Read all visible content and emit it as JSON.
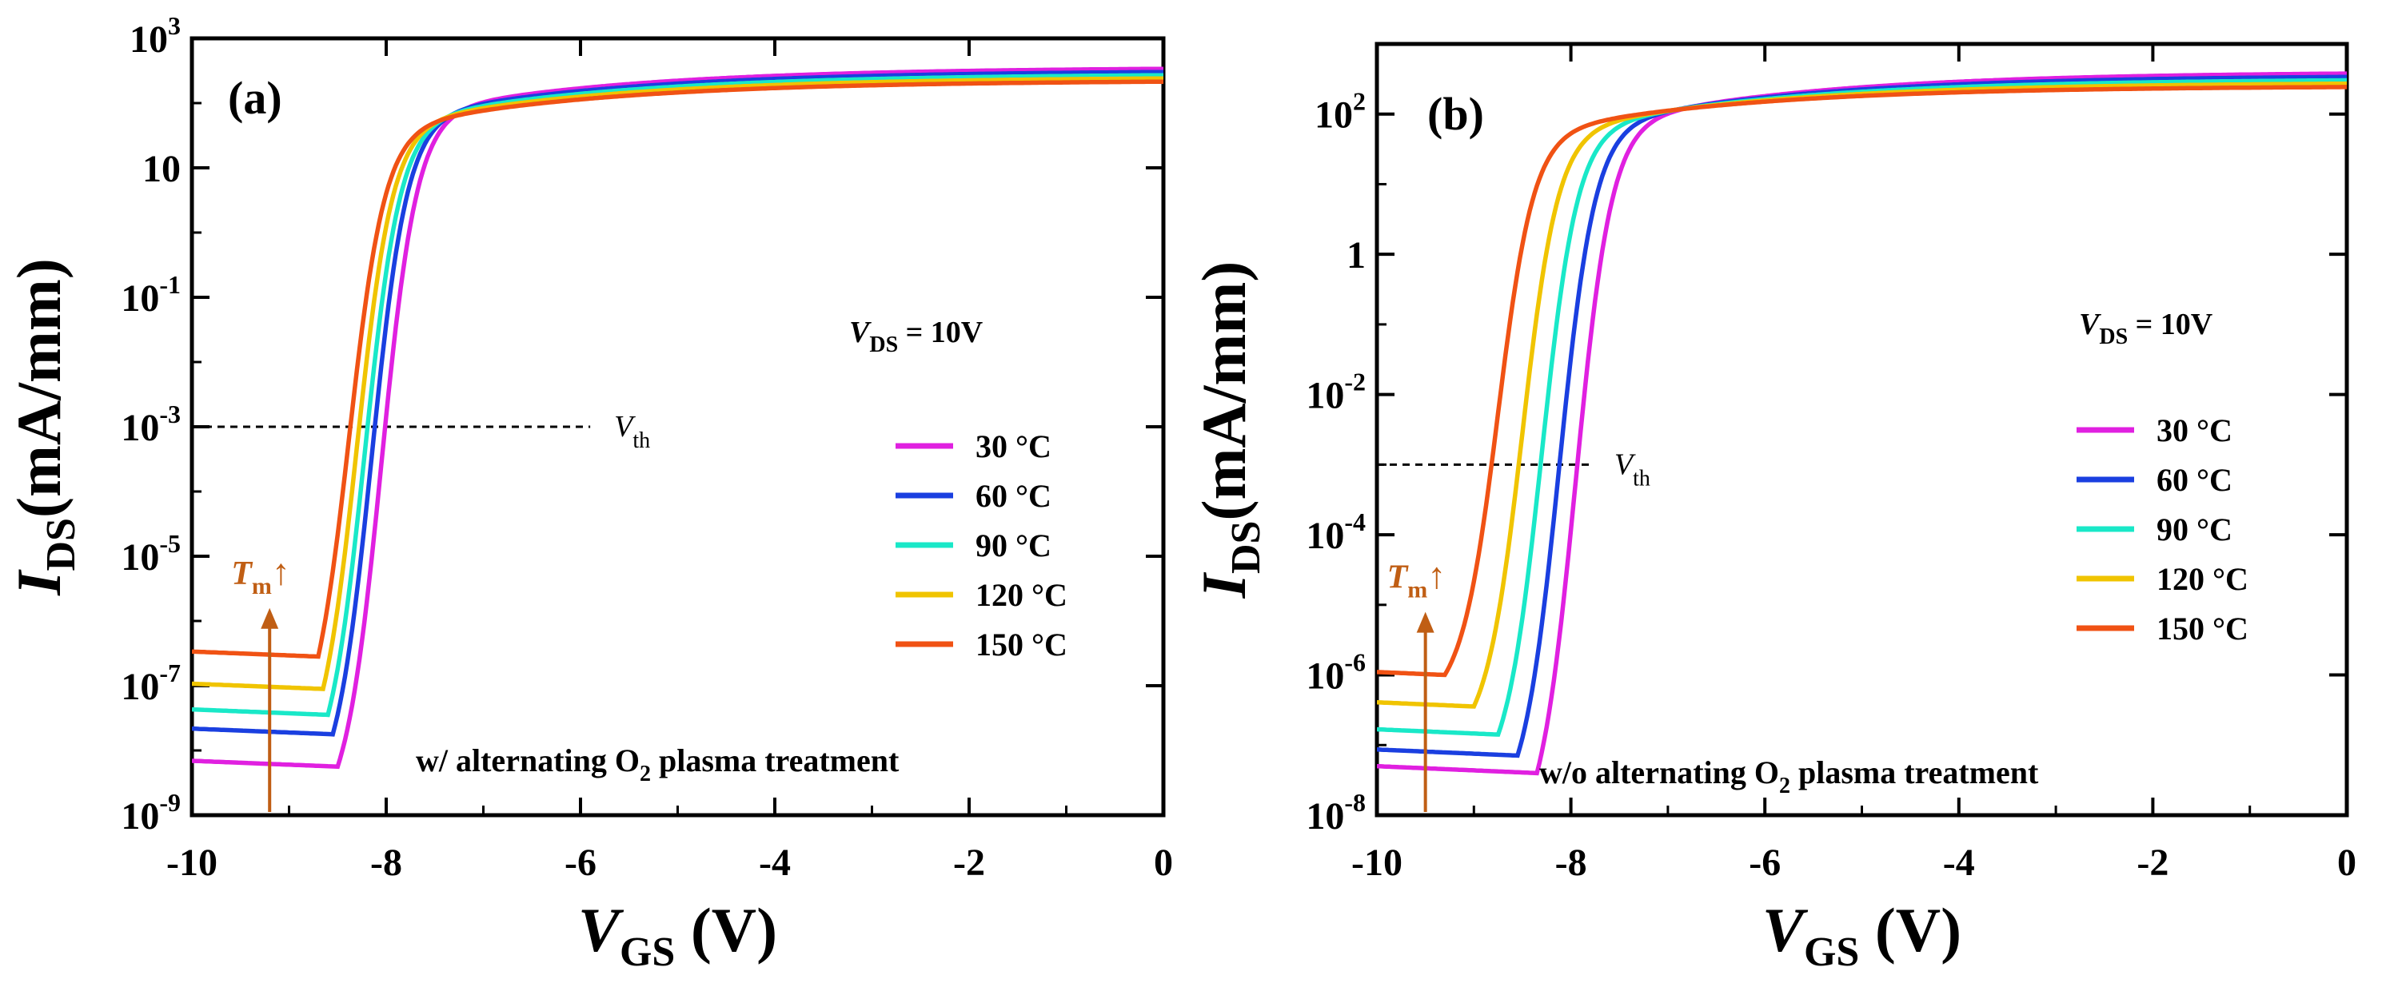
{
  "chart_data": [
    {
      "type": "line",
      "panel_label": "(a)",
      "xlabel": "V",
      "xlabel_sub": "GS",
      "xlabel_unit": " (V)",
      "ylabel": "I",
      "ylabel_sub": "DS",
      "ylabel_unit": "(mA/mm)",
      "xlim": [
        -10,
        0
      ],
      "ylim_log10": [
        -9,
        3
      ],
      "x_ticks": [
        {
          "value": -10,
          "label": "-10"
        },
        {
          "value": -8,
          "label": "-8"
        },
        {
          "value": -6,
          "label": "-6"
        },
        {
          "value": -4,
          "label": "-4"
        },
        {
          "value": -2,
          "label": "-2"
        },
        {
          "value": 0,
          "label": "0"
        }
      ],
      "y_ticks": [
        {
          "log": 3,
          "base": "10",
          "exp": "3"
        },
        {
          "log": 1,
          "base": "10",
          "exp": ""
        },
        {
          "log": -1,
          "base": "10",
          "exp": "-1"
        },
        {
          "log": -3,
          "base": "10",
          "exp": "-3"
        },
        {
          "log": -5,
          "base": "10",
          "exp": "-5"
        },
        {
          "log": -7,
          "base": "10",
          "exp": "-7"
        },
        {
          "log": -9,
          "base": "10",
          "exp": "-9"
        }
      ],
      "annotation": {
        "prefix": "w/  alternating O",
        "sub": "2",
        "suffix": " plasma treatment"
      },
      "vds_text": {
        "main": "V",
        "sub": "DS",
        "rest": " = 10V"
      },
      "vth_text": {
        "main": "V",
        "sub": "th"
      },
      "vth_line": {
        "log": -3,
        "x_from": -10,
        "x_to": -5.9
      },
      "tm_text": {
        "main": "T",
        "sub": "m",
        "arrow": "↑"
      },
      "tm_arrow": {
        "x": -9.2,
        "log_from": -9,
        "log_to": -5.8
      },
      "series": [
        {
          "name": "30 °C",
          "color": "#e020e0",
          "floor_log": -8.25,
          "x_knee": -8.5,
          "x_mid": -8.05,
          "sat_log": 2.55
        },
        {
          "name": "60 °C",
          "color": "#1a3fe0",
          "floor_log": -7.75,
          "x_knee": -8.55,
          "x_mid": -8.15,
          "sat_log": 2.5
        },
        {
          "name": "90 °C",
          "color": "#19e8c8",
          "floor_log": -7.45,
          "x_knee": -8.6,
          "x_mid": -8.22,
          "sat_log": 2.45
        },
        {
          "name": "120 °C",
          "color": "#f0c400",
          "floor_log": -7.05,
          "x_knee": -8.65,
          "x_mid": -8.3,
          "sat_log": 2.4
        },
        {
          "name": "150 °C",
          "color": "#f05214",
          "floor_log": -6.55,
          "x_knee": -8.7,
          "x_mid": -8.38,
          "sat_log": 2.35
        }
      ]
    },
    {
      "type": "line",
      "panel_label": "(b)",
      "xlabel": "V",
      "xlabel_sub": "GS",
      "xlabel_unit": " (V)",
      "ylabel": "I",
      "ylabel_sub": "DS",
      "ylabel_unit": "(mA/mm)",
      "xlim": [
        -10,
        0
      ],
      "ylim_log10": [
        -8,
        3
      ],
      "x_ticks": [
        {
          "value": -10,
          "label": "-10"
        },
        {
          "value": -8,
          "label": "-8"
        },
        {
          "value": -6,
          "label": "-6"
        },
        {
          "value": -4,
          "label": "-4"
        },
        {
          "value": -2,
          "label": "-2"
        },
        {
          "value": 0,
          "label": "0"
        }
      ],
      "y_ticks": [
        {
          "log": 2,
          "base": "10",
          "exp": "2"
        },
        {
          "log": 0,
          "base": "1",
          "exp": ""
        },
        {
          "log": -2,
          "base": "10",
          "exp": "-2"
        },
        {
          "log": -4,
          "base": "10",
          "exp": "-4"
        },
        {
          "log": -6,
          "base": "10",
          "exp": "-6"
        },
        {
          "log": -8,
          "base": "10",
          "exp": "-8"
        }
      ],
      "annotation": {
        "prefix": "w/o  alternating O",
        "sub": "2",
        "suffix": " plasma treatment"
      },
      "vds_text": {
        "main": "V",
        "sub": "DS",
        "rest": " = 10V"
      },
      "vth_text": {
        "main": "V",
        "sub": "th"
      },
      "vth_line": {
        "log": -3,
        "x_from": -10,
        "x_to": -7.8
      },
      "tm_text": {
        "main": "T",
        "sub": "m",
        "arrow": "↑"
      },
      "tm_arrow": {
        "x": -9.5,
        "log_from": -8,
        "log_to": -5.1
      },
      "series": [
        {
          "name": "30 °C",
          "color": "#e020e0",
          "floor_log": -7.4,
          "x_knee": -8.35,
          "x_mid": -7.95,
          "sat_log": 2.6
        },
        {
          "name": "60 °C",
          "color": "#1a3fe0",
          "floor_log": -7.15,
          "x_knee": -8.55,
          "x_mid": -8.12,
          "sat_log": 2.55
        },
        {
          "name": "90 °C",
          "color": "#19e8c8",
          "floor_log": -6.85,
          "x_knee": -8.75,
          "x_mid": -8.3,
          "sat_log": 2.5
        },
        {
          "name": "120 °C",
          "color": "#f0c400",
          "floor_log": -6.45,
          "x_knee": -9.0,
          "x_mid": -8.5,
          "sat_log": 2.45
        },
        {
          "name": "150 °C",
          "color": "#f05214",
          "floor_log": -6.0,
          "x_knee": -9.3,
          "x_mid": -8.75,
          "sat_log": 2.4
        }
      ]
    }
  ]
}
